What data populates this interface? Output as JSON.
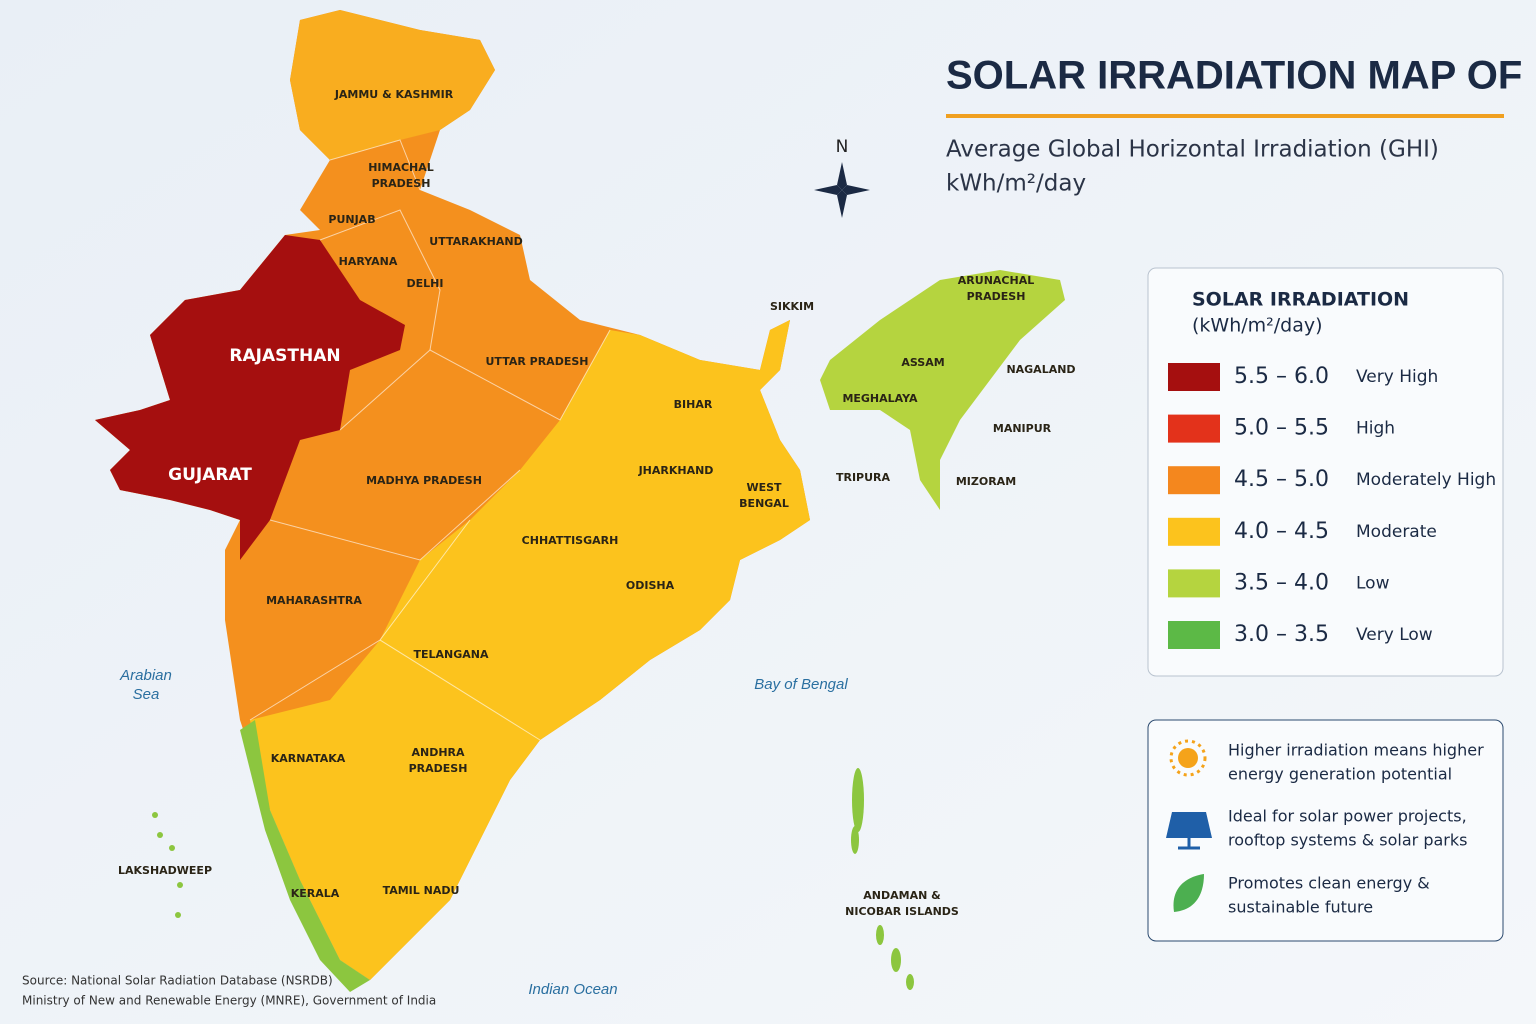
{
  "title": "SOLAR IRRADIATION MAP OF INDIA",
  "subtitle": [
    "Average Global Horizontal Irradiation (GHI)",
    "kWh/m²/day"
  ],
  "compass": "N",
  "regions": [
    [
      "JAMMU & KASHMIR"
    ],
    [
      "HIMACHAL",
      "PRADESH"
    ],
    [
      "PUNJAB"
    ],
    [
      "UTTARAKHAND"
    ],
    [
      "HARYANA"
    ],
    [
      "DELHI"
    ],
    [
      "RAJASTHAN"
    ],
    [
      "UTTAR PRADESH"
    ],
    [
      "SIKKIM"
    ],
    [
      "ARUNACHAL",
      "PRADESH"
    ],
    [
      "ASSAM"
    ],
    [
      "NAGALAND"
    ],
    [
      "MEGHALAYA"
    ],
    [
      "MANIPUR"
    ],
    [
      "BIHAR"
    ],
    [
      "GUJARAT"
    ],
    [
      "MADHYA PRADESH"
    ],
    [
      "JHARKHAND"
    ],
    [
      "WEST",
      "BENGAL"
    ],
    [
      "TRIPURA"
    ],
    [
      "MIZORAM"
    ],
    [
      "CHHATTISGARH"
    ],
    [
      "ODISHA"
    ],
    [
      "MAHARASHTRA"
    ],
    [
      "TELANGANA"
    ],
    [
      "KARNATAKA"
    ],
    [
      "ANDHRA",
      "PRADESH"
    ],
    [
      "LAKSHADWEEP"
    ],
    [
      "KERALA"
    ],
    [
      "TAMIL NADU"
    ],
    [
      "ANDAMAN &",
      "NICOBAR ISLANDS"
    ]
  ],
  "water": [
    [
      "Arabian",
      "Sea"
    ],
    [
      "Bay of Bengal"
    ],
    [
      "Indian Ocean"
    ]
  ],
  "legend": {
    "title": "SOLAR IRRADIATION",
    "unit": "(kWh/m²/day)",
    "items": [
      {
        "range": "5.5 – 6.0",
        "label": "Very High",
        "color": "#a50f0f"
      },
      {
        "range": "5.0 – 5.5",
        "label": "High",
        "color": "#e3321b"
      },
      {
        "range": "4.5 – 5.0",
        "label": "Moderately High",
        "color": "#f4871e"
      },
      {
        "range": "4.0 – 4.5",
        "label": "Moderate",
        "color": "#fcc31d"
      },
      {
        "range": "3.5 – 4.0",
        "label": "Low",
        "color": "#b5d43f"
      },
      {
        "range": "3.0 – 3.5",
        "label": "Very Low",
        "color": "#5cb946"
      }
    ]
  },
  "info": [
    [
      "Higher irradiation means higher",
      "energy generation potential"
    ],
    [
      "Ideal for solar power projects,",
      "rooftop systems & solar parks"
    ],
    [
      "Promotes clean energy &",
      "sustainable future"
    ]
  ],
  "source": [
    "Source: National Solar Radiation Database (NSRDB)",
    "Ministry of New and Renewable Energy (MNRE), Government of India"
  ]
}
